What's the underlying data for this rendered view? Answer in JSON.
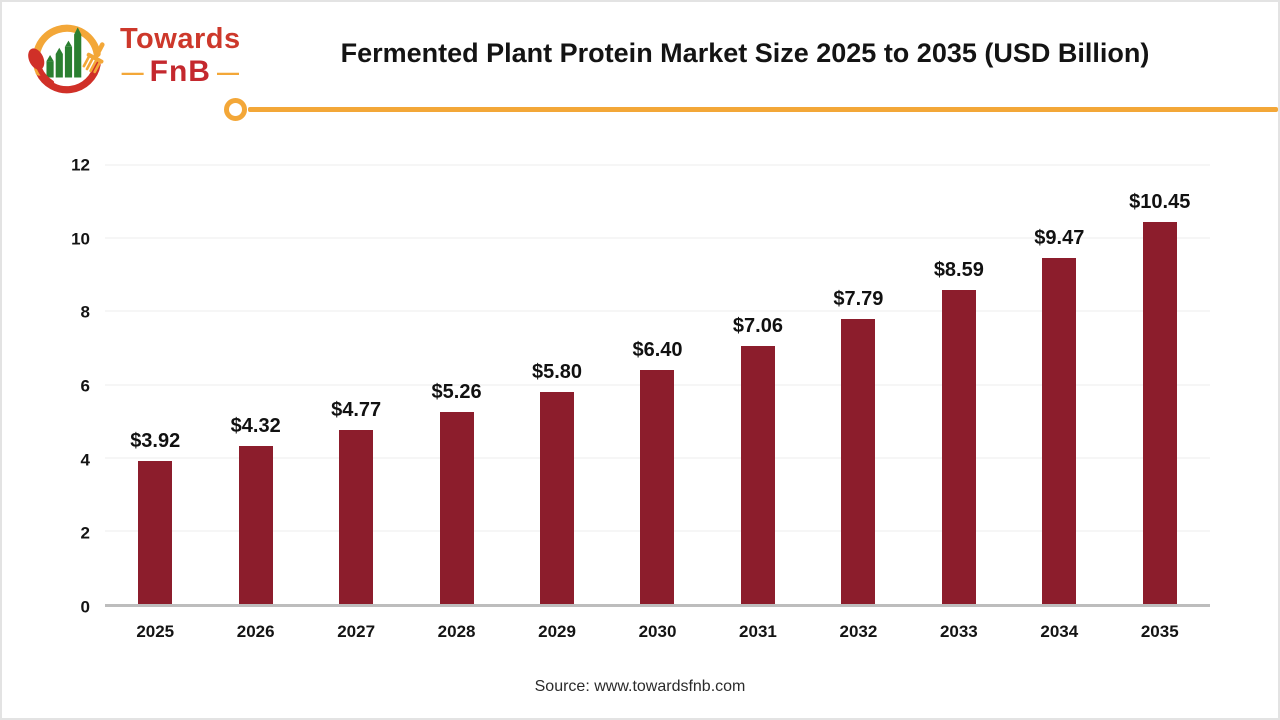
{
  "brand": {
    "name_line1": "Towards",
    "name_line2": "FnB",
    "dash": "—",
    "accent_orange": "#f3a738",
    "accent_red": "#c4282e",
    "accent_green": "#2b7f31"
  },
  "header": {
    "title": "Fermented Plant Protein Market Size 2025 to 2035 (USD Billion)"
  },
  "footer": {
    "source": "Source: www.towardsfnb.com"
  },
  "chart_data": {
    "type": "bar",
    "title": "Fermented Plant Protein Market Size 2025 to 2035 (USD Billion)",
    "categories": [
      "2025",
      "2026",
      "2027",
      "2028",
      "2029",
      "2030",
      "2031",
      "2032",
      "2033",
      "2034",
      "2035"
    ],
    "values": [
      3.92,
      4.32,
      4.77,
      5.26,
      5.8,
      6.4,
      7.06,
      7.79,
      8.59,
      9.47,
      10.45
    ],
    "value_labels": [
      "$3.92",
      "$4.32",
      "$4.77",
      "$5.26",
      "$5.80",
      "$6.40",
      "$7.06",
      "$7.79",
      "$8.59",
      "$9.47",
      "$10.45"
    ],
    "xlabel": "",
    "ylabel": "",
    "ylim": [
      0,
      12
    ],
    "yticks": [
      0,
      2,
      4,
      6,
      8,
      10,
      12
    ],
    "bar_color": "#8c1d2c",
    "grid": true,
    "legend": "none"
  }
}
